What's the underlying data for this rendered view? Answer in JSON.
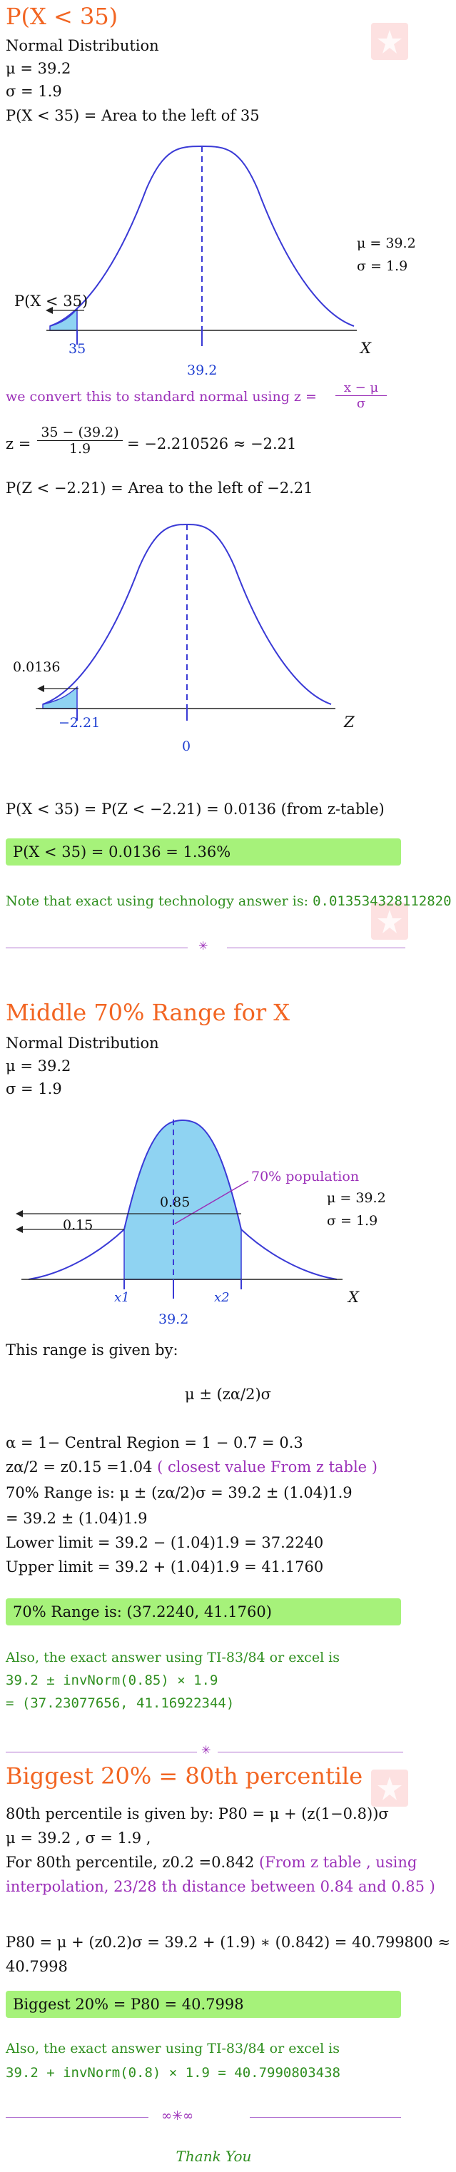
{
  "colors": {
    "accent": "#f26522",
    "purple": "#9b30b8",
    "green": "#2f8f1f",
    "highlight": "#a6f27a",
    "curve": "#3a3ad6",
    "fill": "#8fd3f2"
  },
  "s1": {
    "title": "P(X < 35)",
    "dist": "Normal Distribution",
    "mu": "μ = 39.2",
    "sigma": "σ = 1.9",
    "area_def": "P(X < 35) = Area to the left of 35",
    "graph": {
      "mu": "μ = 39.2",
      "sigma": "σ = 1.9",
      "plabel": "P(X < 35)",
      "x_left": "35",
      "x_mean": "39.2",
      "axis": "X"
    },
    "convert": "we convert this to standard normal using  z =",
    "convert_num": "x − μ",
    "convert_den": "σ",
    "z_lhs": "z =",
    "z_num": "35 − (39.2)",
    "z_den": "1.9",
    "z_rhs": "= −2.210526 ≈ −2.21",
    "z_area": "P(Z < −2.21) = Area to the left of −2.21",
    "zgraph": {
      "tail": "0.0136",
      "z_left": "−2.21",
      "z_mean": "0",
      "axis": "Z"
    },
    "result": "P(X < 35) = P(Z < −2.21) = 0.0136 (from z-table)",
    "boxed": "P(X < 35) = 0.0136 = 1.36%",
    "note": "Note that exact using technology answer is:",
    "note_val": "0.013534328112820"
  },
  "s2": {
    "title": "Middle 70% Range for X",
    "dist": "Normal Distribution",
    "mu": "μ = 39.2",
    "sigma": "σ = 1.9",
    "graph": {
      "pop": "70% population",
      "p85": "0.85",
      "p15": "0.15",
      "mu": "μ = 39.2",
      "sigma": "σ = 1.9",
      "x1": "x1",
      "x2": "x2",
      "mean": "39.2",
      "axis": "X"
    },
    "given": "This range is given by:",
    "formula": "μ ± (zα/2)σ",
    "alpha": "α = 1− Central Region = 1 − 0.7 = 0.3",
    "zline": "zα/2 = z0.15 =1.04",
    "zline_note": "( closest value From z table )",
    "range1": "70% Range is:  μ ± (zα/2)σ = 39.2 ± (1.04)1.9",
    "range2": "= 39.2 ± (1.04)1.9",
    "lower": "Lower limit = 39.2 − (1.04)1.9 = 37.2240",
    "upper": "Upper limit = 39.2 + (1.04)1.9 = 41.1760",
    "boxed": "70% Range is:  (37.2240, 41.1760)",
    "also": "Also, the exact answer using TI-83/84 or excel is",
    "also2": "39.2 ± invNorm(0.85) × 1.9",
    "also3": "= (37.23077656, 41.16922344)"
  },
  "s3": {
    "title": "Biggest 20% = 80th percentile",
    "given": "80th percentile is given by:  P80 = μ + (z(1−0.8))σ",
    "musig": "μ = 39.2 , σ = 1.9 ,",
    "for1": "For 80th  percentile,  z0.2 =0.842",
    "for1_note": "(From z table , using",
    "for2_note": "interpolation, 23/28 th distance between 0.84 and 0.85 )",
    "calc": "P80 = μ + (z0.2)σ = 39.2 + (1.9) ∗ (0.842) = 40.799800 ≈",
    "calc2": "40.7998",
    "boxed": "Biggest 20% = P80 = 40.7998",
    "also": "Also, the exact answer using TI-83/84 or excel is",
    "also2": "39.2 + invNorm(0.8) × 1.9 = 40.7990803438"
  },
  "footer": {
    "thanks": "Thank You"
  }
}
